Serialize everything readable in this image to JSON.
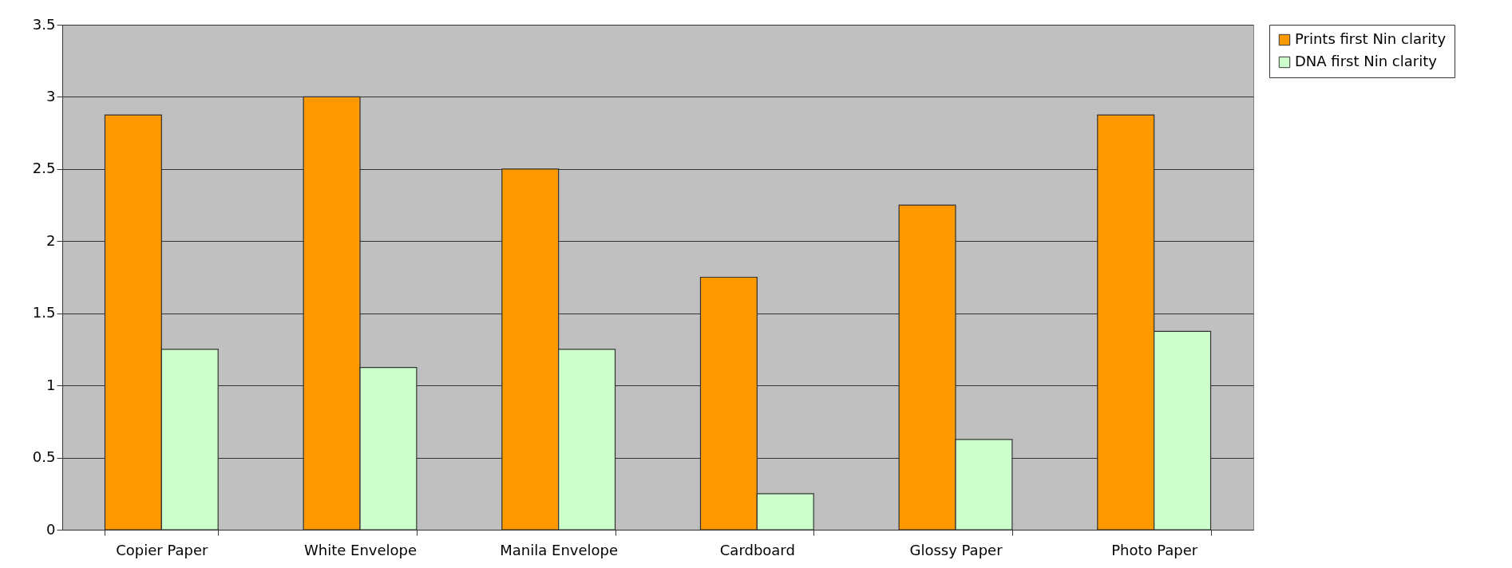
{
  "chart_data": {
    "type": "bar",
    "categories": [
      "Copier Paper",
      "White Envelope",
      "Manila Envelope",
      "Cardboard",
      "Glossy Paper",
      "Photo Paper"
    ],
    "series": [
      {
        "name": "Prints first Nin clarity",
        "color": "#ff9900",
        "values": [
          2.875,
          3,
          2.5,
          1.75,
          2.25,
          2.875
        ]
      },
      {
        "name": "DNA first Nin clarity",
        "color": "#ccffcc",
        "values": [
          1.25,
          1.125,
          1.25,
          0.25,
          0.625,
          1.375
        ]
      }
    ],
    "ylim": [
      0,
      3.5
    ],
    "yticks": [
      0,
      0.5,
      1,
      1.5,
      2,
      2.5,
      3,
      3.5
    ],
    "grid": "y",
    "legend": "right"
  }
}
